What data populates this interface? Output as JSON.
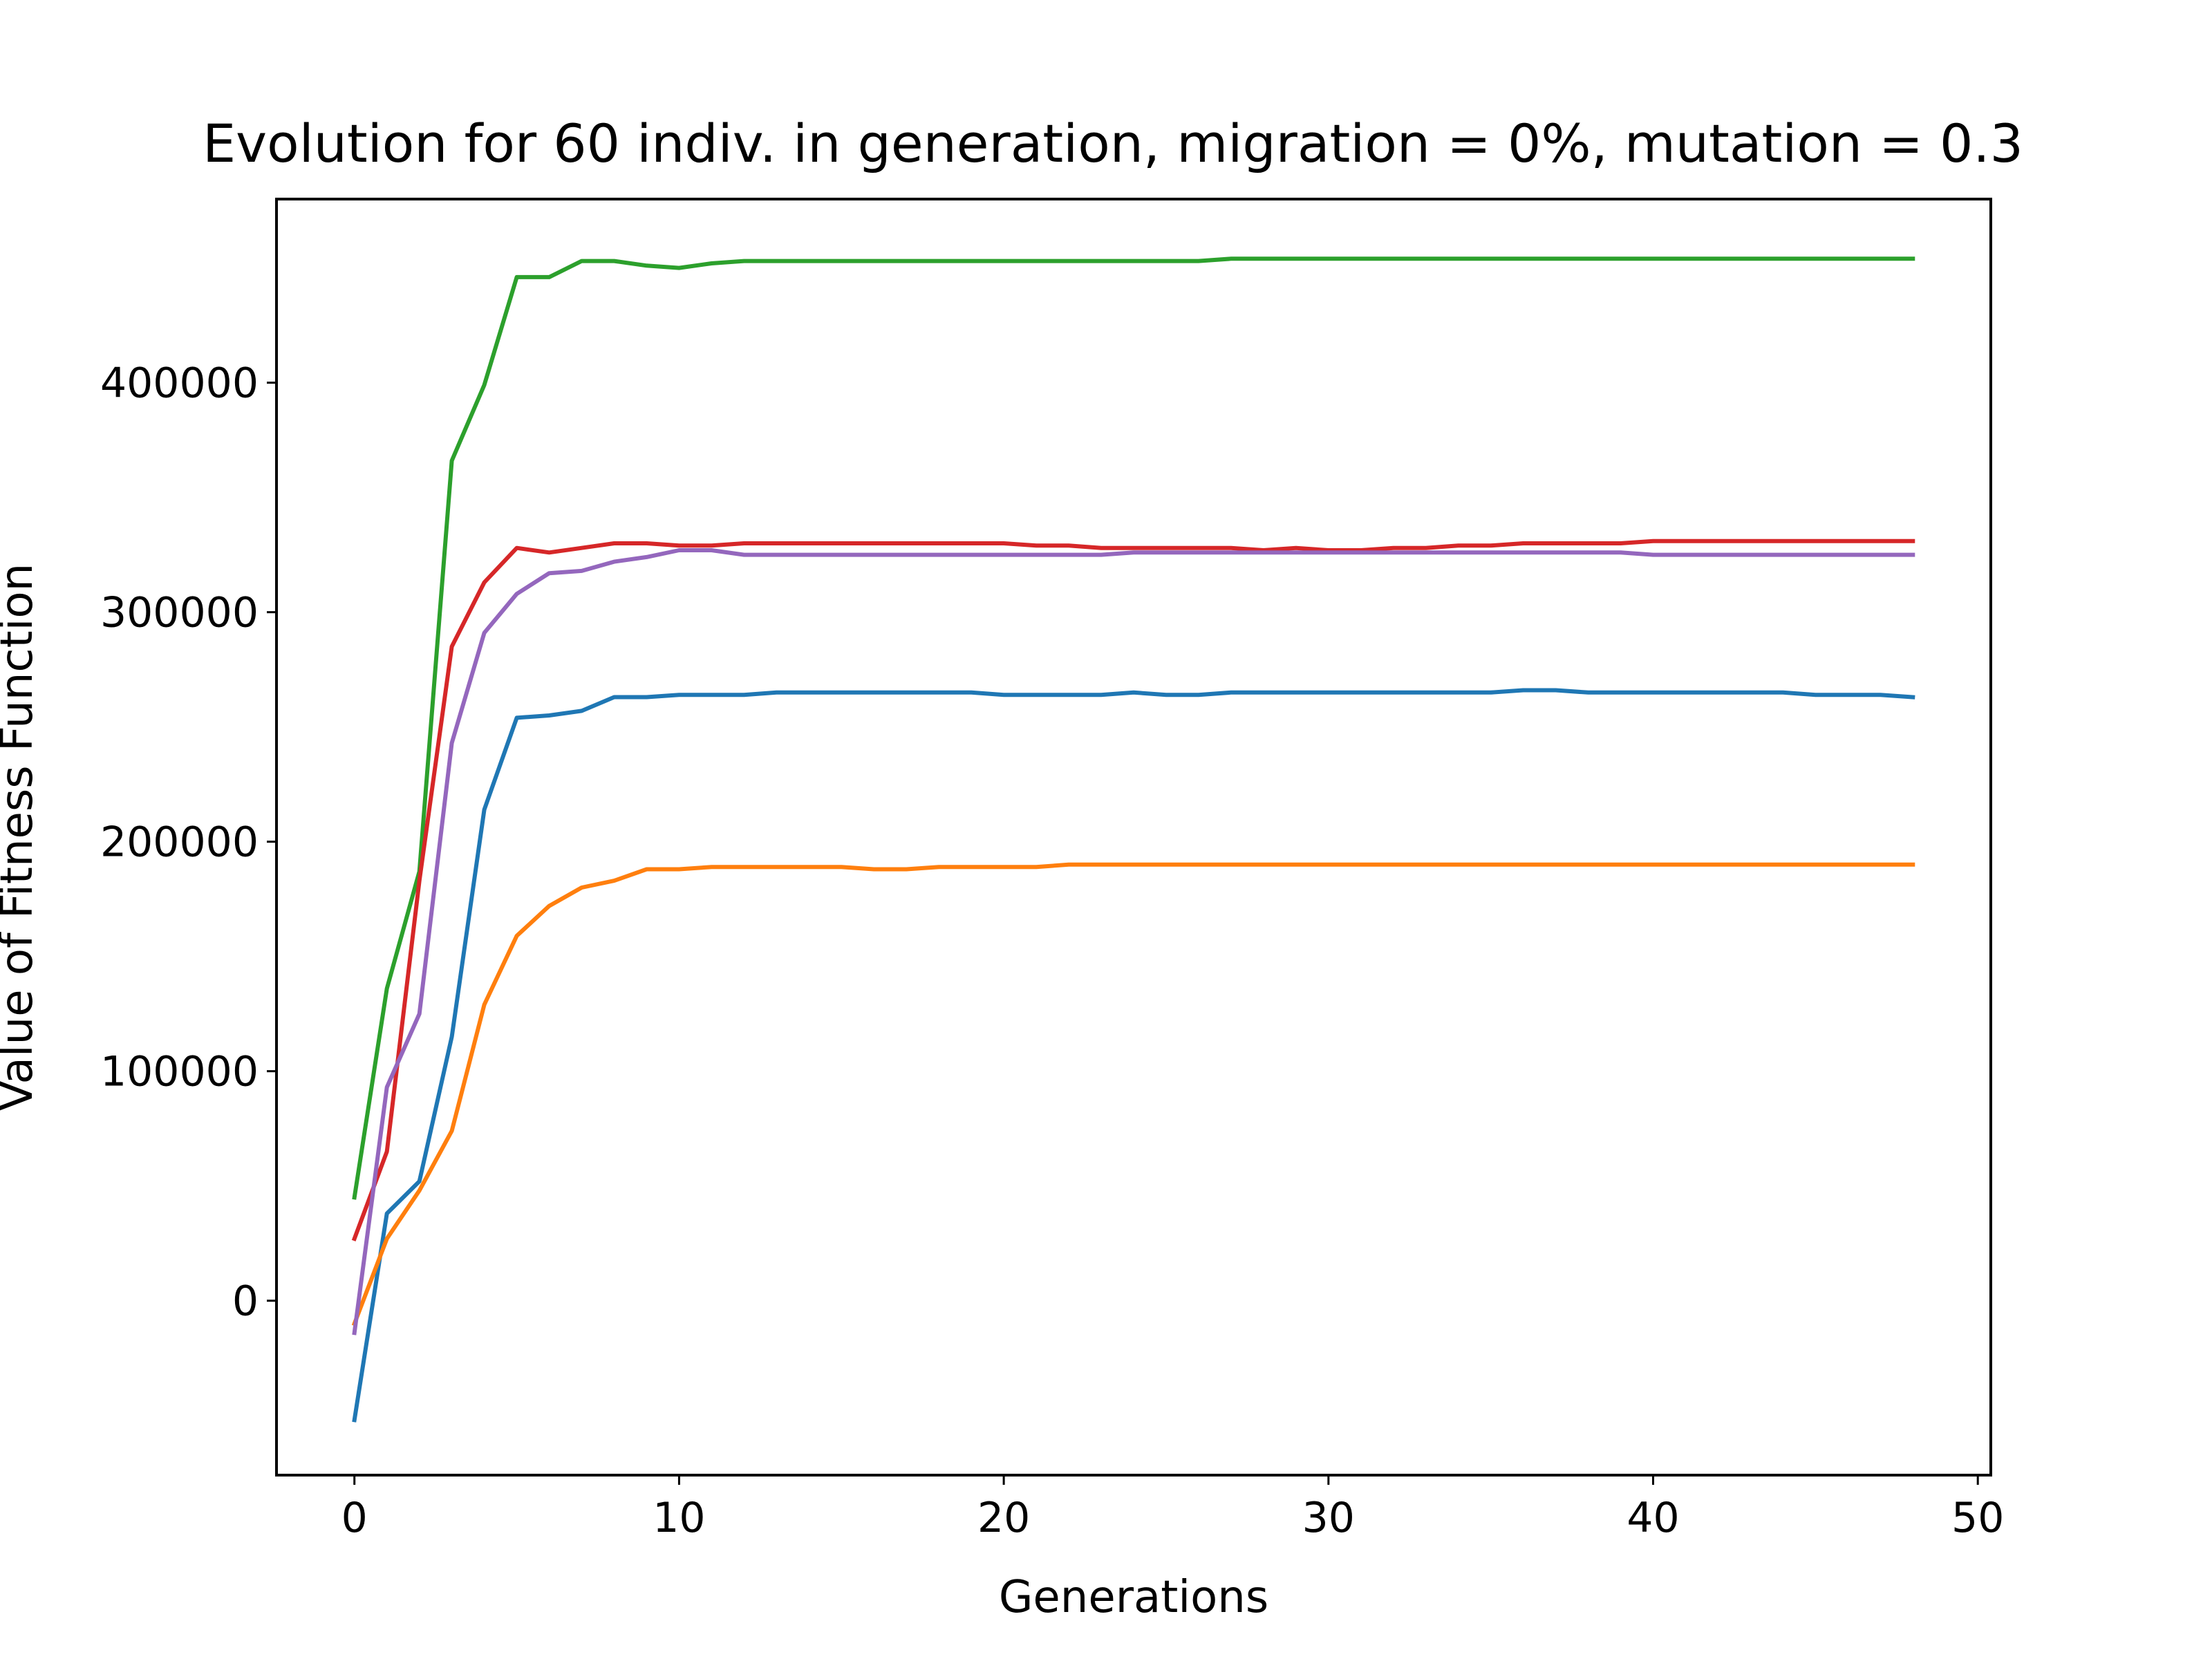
{
  "chart_data": {
    "type": "line",
    "title": "Evolution for 60 indiv. in generation, migration = 0%, mutation = 0.3",
    "xlabel": "Generations",
    "ylabel": "Value of Fitness Function",
    "xlim": [
      -2.4,
      50.4
    ],
    "ylim": [
      -76000,
      480000
    ],
    "xticks": [
      0,
      10,
      20,
      30,
      40,
      50
    ],
    "yticks": [
      0,
      100000,
      200000,
      300000,
      400000
    ],
    "grid": false,
    "x": [
      0,
      1,
      2,
      3,
      4,
      5,
      6,
      7,
      8,
      9,
      10,
      11,
      12,
      13,
      14,
      15,
      16,
      17,
      18,
      19,
      20,
      21,
      22,
      23,
      24,
      25,
      26,
      27,
      28,
      29,
      30,
      31,
      32,
      33,
      34,
      35,
      36,
      37,
      38,
      39,
      40,
      41,
      42,
      43,
      44,
      45,
      46,
      47,
      48
    ],
    "series": [
      {
        "color": "#1f77b4",
        "values": [
          -52000,
          38000,
          52000,
          115000,
          214000,
          254000,
          255000,
          257000,
          263000,
          263000,
          264000,
          264000,
          264000,
          265000,
          265000,
          265000,
          265000,
          265000,
          265000,
          265000,
          264000,
          264000,
          264000,
          264000,
          265000,
          264000,
          264000,
          265000,
          265000,
          265000,
          265000,
          265000,
          265000,
          265000,
          265000,
          265000,
          266000,
          266000,
          265000,
          265000,
          265000,
          265000,
          265000,
          265000,
          265000,
          264000,
          264000,
          264000,
          263000
        ]
      },
      {
        "color": "#ff7f0e",
        "values": [
          -10000,
          27000,
          48000,
          74000,
          129000,
          159000,
          172000,
          180000,
          183000,
          188000,
          188000,
          189000,
          189000,
          189000,
          189000,
          189000,
          188000,
          188000,
          189000,
          189000,
          189000,
          189000,
          190000,
          190000,
          190000,
          190000,
          190000,
          190000,
          190000,
          190000,
          190000,
          190000,
          190000,
          190000,
          190000,
          190000,
          190000,
          190000,
          190000,
          190000,
          190000,
          190000,
          190000,
          190000,
          190000,
          190000,
          190000,
          190000,
          190000
        ]
      },
      {
        "color": "#2ca02c",
        "values": [
          45000,
          136000,
          187000,
          366000,
          399000,
          446000,
          446000,
          453000,
          453000,
          451000,
          450000,
          452000,
          453000,
          453000,
          453000,
          453000,
          453000,
          453000,
          453000,
          453000,
          453000,
          453000,
          453000,
          453000,
          453000,
          453000,
          453000,
          454000,
          454000,
          454000,
          454000,
          454000,
          454000,
          454000,
          454000,
          454000,
          454000,
          454000,
          454000,
          454000,
          454000,
          454000,
          454000,
          454000,
          454000,
          454000,
          454000,
          454000,
          454000
        ]
      },
      {
        "color": "#d62728",
        "values": [
          27000,
          65000,
          183000,
          285000,
          313000,
          328000,
          326000,
          328000,
          330000,
          330000,
          329000,
          329000,
          330000,
          330000,
          330000,
          330000,
          330000,
          330000,
          330000,
          330000,
          330000,
          329000,
          329000,
          328000,
          328000,
          328000,
          328000,
          328000,
          327000,
          328000,
          327000,
          327000,
          328000,
          328000,
          329000,
          329000,
          330000,
          330000,
          330000,
          330000,
          331000,
          331000,
          331000,
          331000,
          331000,
          331000,
          331000,
          331000,
          331000
        ]
      },
      {
        "color": "#9467bd",
        "values": [
          -14000,
          93000,
          125000,
          243000,
          291000,
          308000,
          317000,
          318000,
          322000,
          324000,
          327000,
          327000,
          325000,
          325000,
          325000,
          325000,
          325000,
          325000,
          325000,
          325000,
          325000,
          325000,
          325000,
          325000,
          326000,
          326000,
          326000,
          326000,
          326000,
          326000,
          326000,
          326000,
          326000,
          326000,
          326000,
          326000,
          326000,
          326000,
          326000,
          326000,
          325000,
          325000,
          325000,
          325000,
          325000,
          325000,
          325000,
          325000,
          325000
        ]
      }
    ]
  }
}
